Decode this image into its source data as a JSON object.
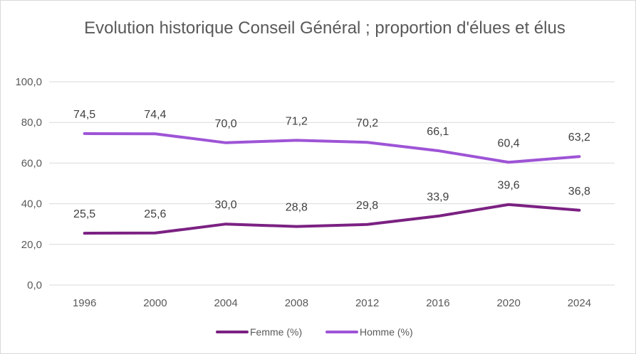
{
  "chart_data": {
    "type": "line",
    "title": "Evolution historique Conseil Général ; proportion d'élues et élus",
    "x": [
      "1996",
      "2000",
      "2004",
      "2008",
      "2012",
      "2016",
      "2020",
      "2024"
    ],
    "series": [
      {
        "name": "Femme (%)",
        "color": "#7b2182",
        "values": [
          25.5,
          25.6,
          30.0,
          28.8,
          29.8,
          33.9,
          39.6,
          36.8
        ],
        "labels": [
          "25,5",
          "25,6",
          "30,0",
          "28,8",
          "29,8",
          "33,9",
          "39,6",
          "36,8"
        ]
      },
      {
        "name": "Homme (%)",
        "color": "#9e54d6",
        "values": [
          74.5,
          74.4,
          70.0,
          71.2,
          70.2,
          66.1,
          60.4,
          63.2
        ],
        "labels": [
          "74,5",
          "74,4",
          "70,0",
          "71,2",
          "70,2",
          "66,1",
          "60,4",
          "63,2"
        ]
      }
    ],
    "y_ticks": [
      "0,0",
      "20,0",
      "40,0",
      "60,0",
      "80,0",
      "100,0"
    ],
    "ylim": [
      0,
      100
    ],
    "grid": true,
    "legend": "bottom"
  }
}
